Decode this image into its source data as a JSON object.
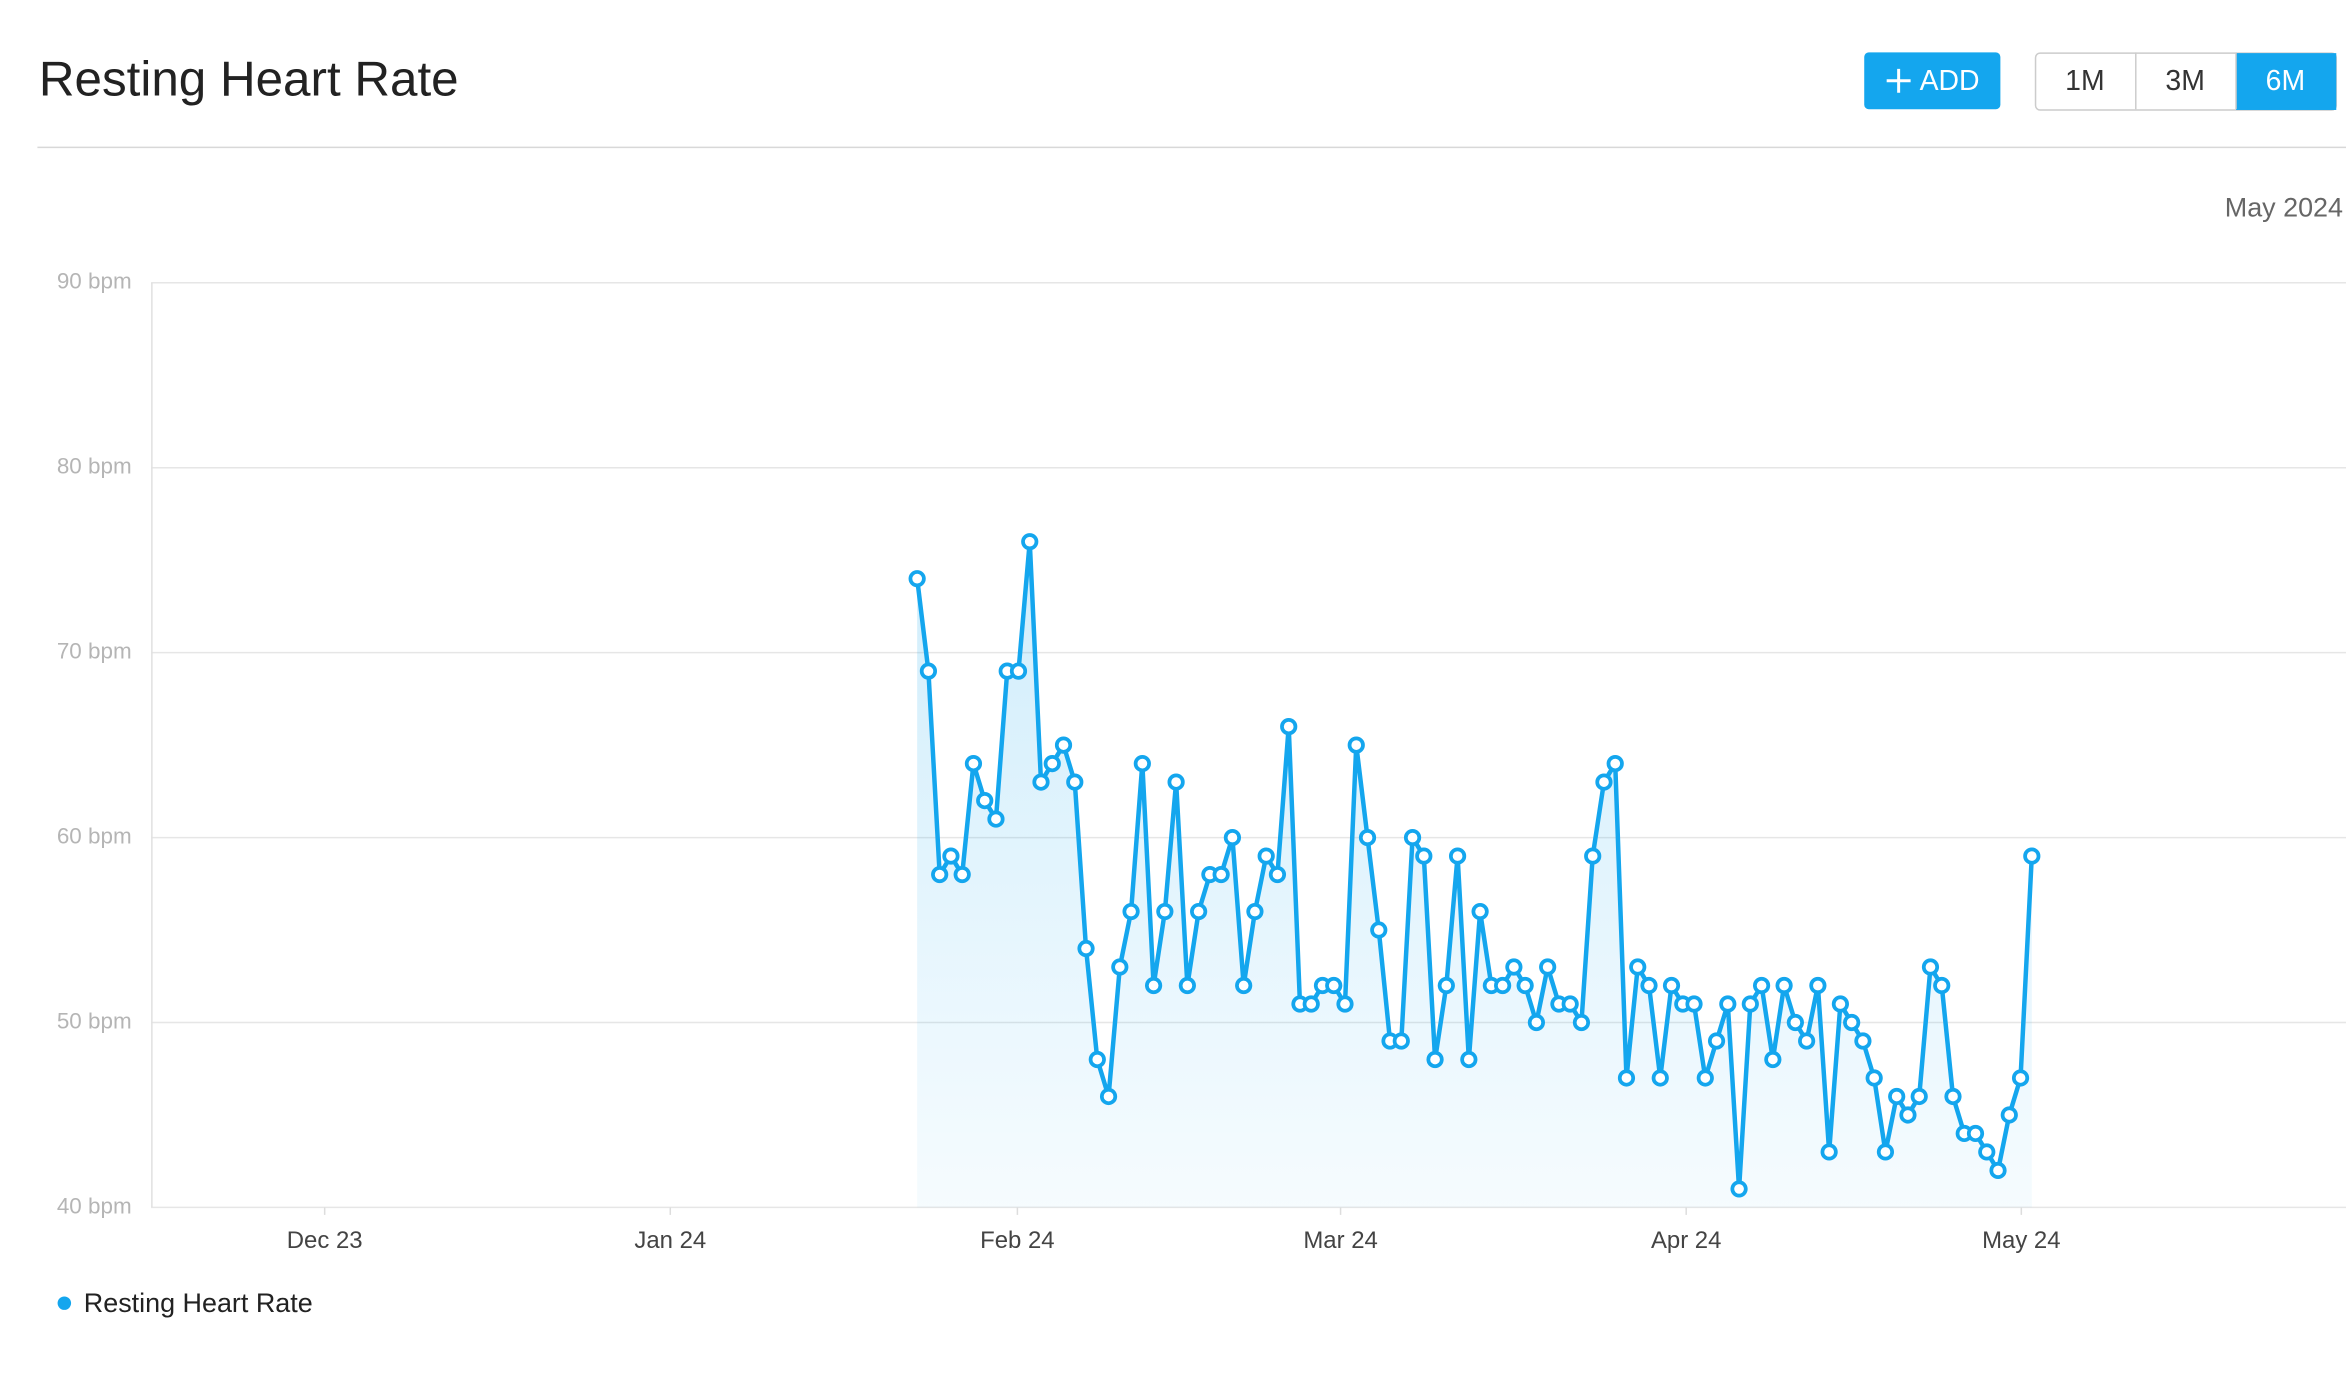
{
  "header": {
    "title": "Resting Heart Rate",
    "add_button": "ADD",
    "ranges": [
      "1M",
      "3M",
      "6M"
    ],
    "active_range": "6M",
    "period": "May 2024"
  },
  "chart_data": {
    "type": "line",
    "x_axis_labels": [
      "Dec 23",
      "Jan 24",
      "Feb 24",
      "Mar 24",
      "Apr 24",
      "May 24"
    ],
    "series": [
      {
        "name": "Resting Heart Rate",
        "color": "#14a6ee",
        "values": [
          74,
          69,
          58,
          59,
          58,
          64,
          62,
          61,
          69,
          69,
          76,
          63,
          64,
          65,
          63,
          54,
          48,
          46,
          53,
          56,
          64,
          52,
          56,
          63,
          52,
          56,
          58,
          58,
          60,
          52,
          56,
          59,
          58,
          66,
          51,
          51,
          52,
          52,
          51,
          65,
          60,
          55,
          49,
          49,
          60,
          59,
          48,
          52,
          59,
          48,
          56,
          52,
          52,
          53,
          52,
          50,
          53,
          51,
          51,
          50,
          59,
          63,
          64,
          47,
          53,
          52,
          47,
          52,
          51,
          51,
          47,
          49,
          51,
          41,
          51,
          52,
          48,
          52,
          50,
          49,
          52,
          43,
          51,
          50,
          49,
          47,
          43,
          46,
          45,
          46,
          53,
          52,
          46,
          44,
          44,
          43,
          42,
          45,
          47,
          59
        ]
      }
    ],
    "ylim": [
      40,
      90
    ],
    "yticks": [
      {
        "value": 40,
        "label": "40 bpm"
      },
      {
        "value": 50,
        "label": "50 bpm"
      },
      {
        "value": 60,
        "label": "60 bpm"
      },
      {
        "value": 70,
        "label": "70 bpm"
      },
      {
        "value": 80,
        "label": "80 bpm"
      },
      {
        "value": 90,
        "label": "90 bpm"
      }
    ],
    "grid": true,
    "area_fill": true
  }
}
